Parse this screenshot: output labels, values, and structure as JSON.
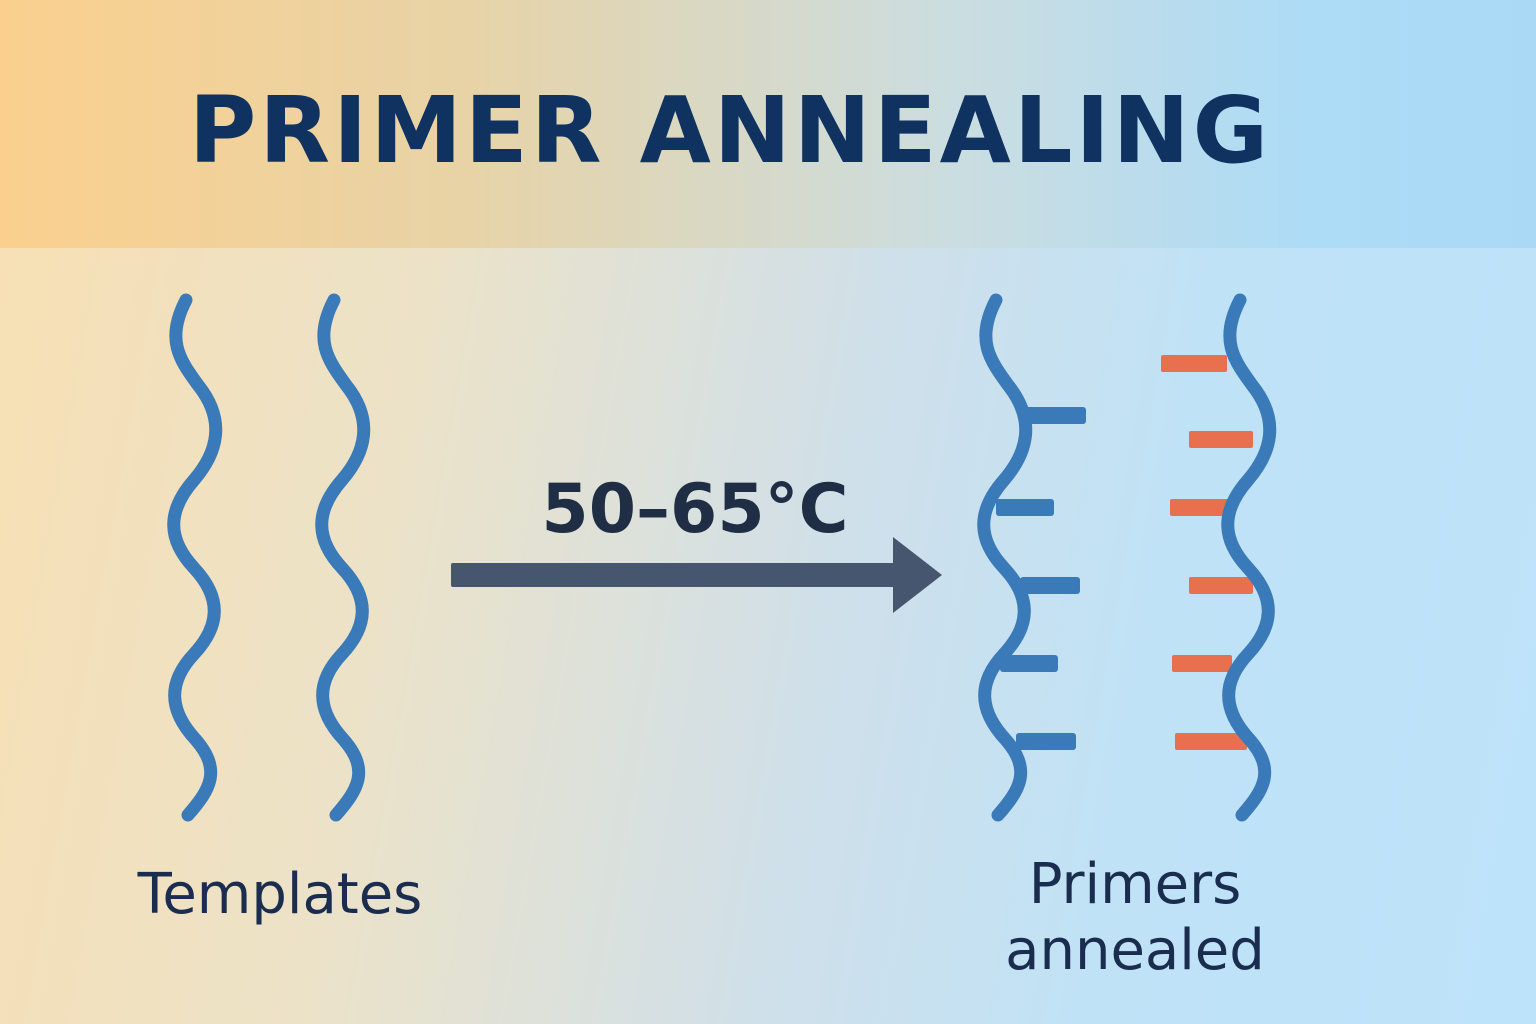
{
  "title": "PRIMER ANNEALING",
  "condition": {
    "temperature": "50–65°C"
  },
  "labels": {
    "templates": "Templates",
    "primers_line1": "Primers",
    "primers_line2": "annealed"
  },
  "colors": {
    "title": "#103261",
    "strand": "#3a7ab8",
    "primer": "#e8704f",
    "arrow": "#45566e",
    "text": "#1b2d4f"
  }
}
